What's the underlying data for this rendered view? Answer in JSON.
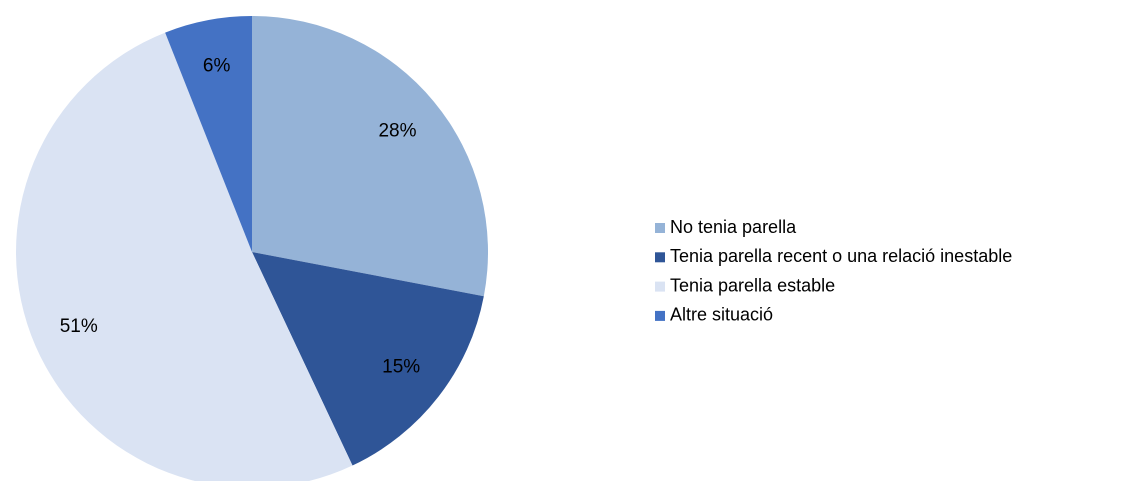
{
  "chart_data": {
    "type": "pie",
    "categories": [
      "No tenia parella",
      "Tenia parella recent o una relació inestable",
      "Tenia parella estable",
      "Altre situació"
    ],
    "values": [
      28,
      15,
      51,
      6
    ],
    "value_labels": [
      "28%",
      "15%",
      "51%",
      "6%"
    ],
    "colors": [
      "#95b3d7",
      "#2f5597",
      "#dae3f3",
      "#4472c4"
    ],
    "legend": "right"
  }
}
